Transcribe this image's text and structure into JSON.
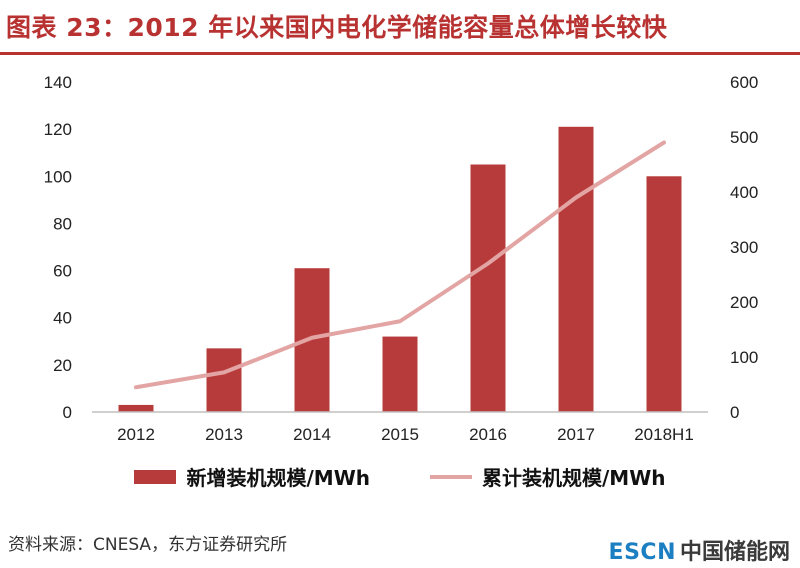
{
  "title": "图表 23：2012 年以来国内电化学储能容量总体增长较快",
  "chart_data": {
    "type": "bar",
    "categories": [
      "2012",
      "2013",
      "2014",
      "2015",
      "2016",
      "2017",
      "2018H1"
    ],
    "series": [
      {
        "name": "新增装机规模/MWh",
        "type": "bar",
        "axis": "left",
        "values": [
          3,
          27,
          61,
          32,
          105,
          121,
          100
        ]
      },
      {
        "name": "累计装机规模/MWh",
        "type": "line",
        "axis": "right",
        "values": [
          45,
          72,
          135,
          165,
          270,
          390,
          490
        ]
      }
    ],
    "y_left": {
      "min": 0,
      "max": 140,
      "ticks": [
        "0",
        "20",
        "40",
        "60",
        "80",
        "100",
        "120",
        "140"
      ]
    },
    "y_right": {
      "min": 0,
      "max": 600,
      "ticks": [
        "0",
        "100",
        "200",
        "300",
        "400",
        "500",
        "600"
      ]
    },
    "colors": {
      "bar": "#b83b3b",
      "line": "#e3a4a4",
      "axis": "#bfbfbf"
    },
    "grid": false,
    "legend_position": "bottom"
  },
  "legend": {
    "bar_label": "新增装机规模/MWh",
    "line_label": "累计装机规模/MWh"
  },
  "source": "资料来源：CNESA，东方证券研究所",
  "watermark": {
    "brand": "ESCN",
    "site": "中国储能网"
  }
}
